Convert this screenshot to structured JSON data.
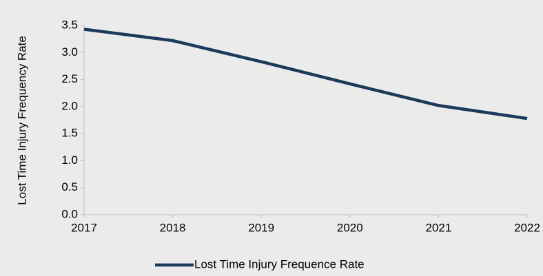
{
  "chart_data": {
    "type": "line",
    "y_label": "Lost Time Injury Frequency Rate",
    "x": [
      2017,
      2018,
      2019,
      2020,
      2021,
      2022
    ],
    "series": [
      {
        "name": "Lost Time Injury Frequence Rate",
        "color": "#1b3a5c",
        "values": [
          3.43,
          3.22,
          2.83,
          2.42,
          2.02,
          1.78
        ]
      }
    ],
    "xlim": [
      2017,
      2022
    ],
    "xticks": [
      2017,
      2018,
      2019,
      2020,
      2021,
      2022
    ],
    "ylim": [
      0,
      3.5
    ],
    "yticks": [
      {
        "value": 0,
        "label": "0.0"
      },
      0.5,
      {
        "value": 1,
        "label": "1.0"
      },
      1.5,
      {
        "value": 2,
        "label": "2.0"
      },
      2.5,
      {
        "value": 3,
        "label": "3.0"
      },
      3.5
    ],
    "legend": "bottom"
  }
}
